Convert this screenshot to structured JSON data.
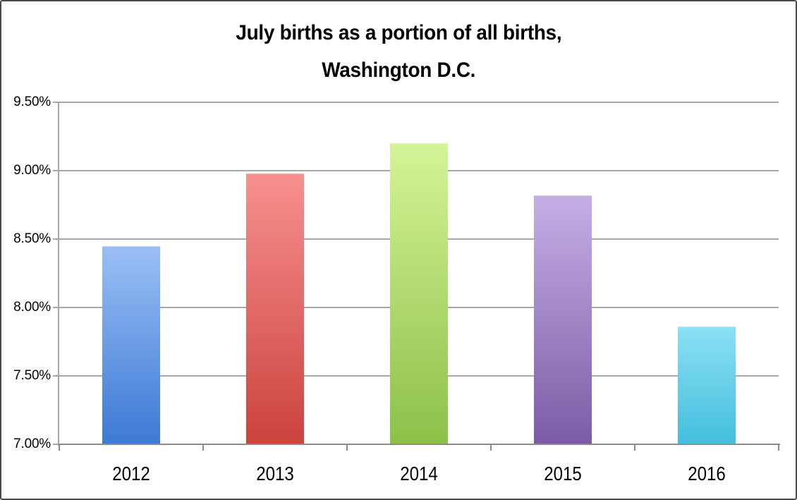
{
  "chart_data": {
    "type": "bar",
    "title_line1": "July births as a portion of all births,",
    "title_line2": "Washington D.C.",
    "categories": [
      "2012",
      "2013",
      "2014",
      "2015",
      "2016"
    ],
    "values": [
      8.45,
      8.98,
      9.2,
      8.82,
      7.86
    ],
    "value_unit": "%",
    "xlabel": "",
    "ylabel": "",
    "ylim": [
      7.0,
      9.5
    ],
    "ytick_step": 0.5,
    "ytick_labels": [
      "9.50%",
      "9.00%",
      "8.50%",
      "8.00%",
      "7.50%",
      "7.00%"
    ],
    "grid": true,
    "legend": "none",
    "bar_gradients": [
      {
        "top": "#9ABFF5",
        "bottom": "#3D79D5"
      },
      {
        "top": "#F7918E",
        "bottom": "#CB423E"
      },
      {
        "top": "#D5F497",
        "bottom": "#8DC049"
      },
      {
        "top": "#C5AFE5",
        "bottom": "#7C5BA6"
      },
      {
        "top": "#8BE0F4",
        "bottom": "#43BEDC"
      }
    ],
    "colors": {
      "gridline": "#A8A8A8",
      "axis": "#8C8C8C",
      "text": "#000000",
      "background": "#FFFFFF",
      "frame_border": "#4A4A4A"
    }
  }
}
